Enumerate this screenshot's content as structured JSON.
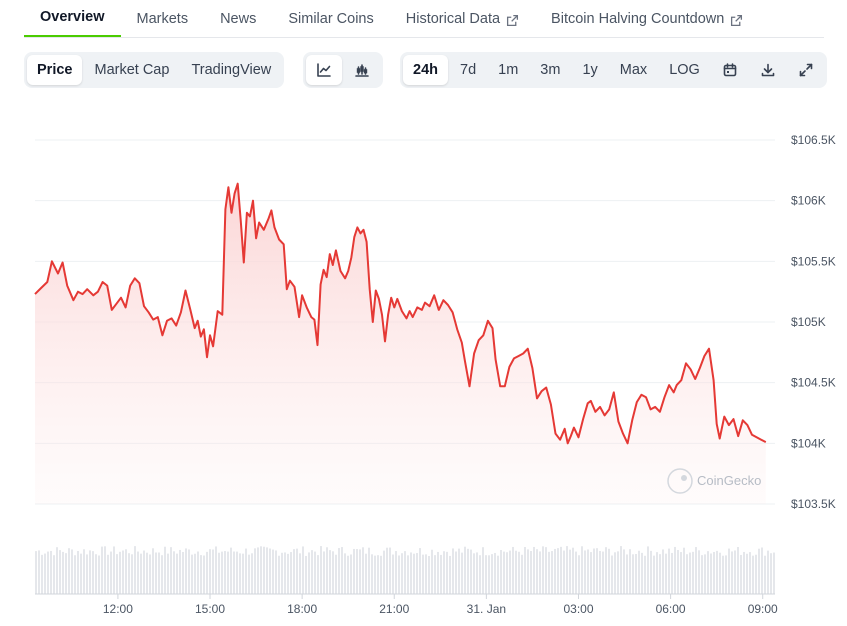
{
  "tabs": [
    {
      "label": "Overview",
      "active": true,
      "external": false
    },
    {
      "label": "Markets",
      "active": false,
      "external": false
    },
    {
      "label": "News",
      "active": false,
      "external": false
    },
    {
      "label": "Similar Coins",
      "active": false,
      "external": false
    },
    {
      "label": "Historical Data",
      "active": false,
      "external": true
    },
    {
      "label": "Bitcoin Halving Countdown",
      "active": false,
      "external": true
    }
  ],
  "toolbar": {
    "view_options": [
      "Price",
      "Market Cap",
      "TradingView"
    ],
    "view_selected": "Price",
    "chart_type_icons": [
      "line-chart-icon",
      "candlestick-chart-icon"
    ],
    "chart_type_selected": "line-chart-icon",
    "ranges": [
      "24h",
      "7d",
      "1m",
      "3m",
      "1y",
      "Max",
      "LOG"
    ],
    "range_selected": "24h",
    "action_icons": [
      "calendar-icon",
      "download-icon",
      "expand-icon"
    ]
  },
  "watermark": "CoinGecko",
  "colors": {
    "line": "#e53935",
    "fill_top": "#fbd4d4",
    "accent": "#4bcc00",
    "volume": "#e5e7eb"
  },
  "chart_data": {
    "type": "area",
    "y_ticks": [
      "$106.5K",
      "$106K",
      "$105.5K",
      "$105K",
      "$104.5K",
      "$104K",
      "$103.5K"
    ],
    "y_tick_values": [
      106500,
      106000,
      105500,
      105000,
      104500,
      104000,
      103500
    ],
    "ylim": [
      103500,
      106500
    ],
    "x_ticks": [
      "12:00",
      "15:00",
      "18:00",
      "21:00",
      "31. Jan",
      "03:00",
      "06:00",
      "09:00"
    ],
    "x_tick_hours": [
      12,
      15,
      18,
      21,
      24,
      27,
      30,
      33
    ],
    "xlim": [
      9.3,
      33.4
    ],
    "grid": true,
    "series": [
      {
        "points": [
          [
            9.3,
            105230
          ],
          [
            9.5,
            105280
          ],
          [
            9.7,
            105330
          ],
          [
            9.85,
            105500
          ],
          [
            10.05,
            105400
          ],
          [
            10.2,
            105490
          ],
          [
            10.35,
            105300
          ],
          [
            10.55,
            105180
          ],
          [
            10.7,
            105250
          ],
          [
            10.85,
            105230
          ],
          [
            11.0,
            105270
          ],
          [
            11.2,
            105220
          ],
          [
            11.35,
            105250
          ],
          [
            11.5,
            105330
          ],
          [
            11.65,
            105300
          ],
          [
            11.8,
            105100
          ],
          [
            11.95,
            105150
          ],
          [
            12.1,
            105200
          ],
          [
            12.25,
            105120
          ],
          [
            12.4,
            105300
          ],
          [
            12.55,
            105360
          ],
          [
            12.7,
            105320
          ],
          [
            12.85,
            105130
          ],
          [
            13.0,
            105080
          ],
          [
            13.15,
            105020
          ],
          [
            13.3,
            105040
          ],
          [
            13.45,
            104890
          ],
          [
            13.6,
            105010
          ],
          [
            13.75,
            105030
          ],
          [
            13.9,
            104970
          ],
          [
            14.05,
            105080
          ],
          [
            14.2,
            105260
          ],
          [
            14.35,
            105110
          ],
          [
            14.5,
            104950
          ],
          [
            14.6,
            105010
          ],
          [
            14.7,
            104880
          ],
          [
            14.8,
            104940
          ],
          [
            14.9,
            104710
          ],
          [
            15.0,
            104890
          ],
          [
            15.1,
            104800
          ],
          [
            15.25,
            105090
          ],
          [
            15.4,
            105060
          ],
          [
            15.5,
            105930
          ],
          [
            15.6,
            106110
          ],
          [
            15.7,
            105900
          ],
          [
            15.8,
            106060
          ],
          [
            15.9,
            106140
          ],
          [
            16.0,
            105840
          ],
          [
            16.1,
            105490
          ],
          [
            16.2,
            105900
          ],
          [
            16.3,
            105870
          ],
          [
            16.4,
            106000
          ],
          [
            16.5,
            105690
          ],
          [
            16.6,
            105820
          ],
          [
            16.75,
            105760
          ],
          [
            16.9,
            105850
          ],
          [
            17.0,
            105920
          ],
          [
            17.1,
            105780
          ],
          [
            17.25,
            105680
          ],
          [
            17.4,
            105640
          ],
          [
            17.5,
            105270
          ],
          [
            17.6,
            105340
          ],
          [
            17.75,
            105290
          ],
          [
            17.9,
            105040
          ],
          [
            18.0,
            105220
          ],
          [
            18.15,
            105120
          ],
          [
            18.3,
            105040
          ],
          [
            18.4,
            105020
          ],
          [
            18.5,
            104810
          ],
          [
            18.6,
            105310
          ],
          [
            18.7,
            105430
          ],
          [
            18.8,
            105370
          ],
          [
            18.9,
            105560
          ],
          [
            19.0,
            105470
          ],
          [
            19.1,
            105590
          ],
          [
            19.25,
            105420
          ],
          [
            19.4,
            105360
          ],
          [
            19.5,
            105420
          ],
          [
            19.6,
            105530
          ],
          [
            19.7,
            105700
          ],
          [
            19.8,
            105780
          ],
          [
            19.9,
            105730
          ],
          [
            20.0,
            105760
          ],
          [
            20.1,
            105660
          ],
          [
            20.2,
            105270
          ],
          [
            20.3,
            105000
          ],
          [
            20.4,
            105260
          ],
          [
            20.5,
            105190
          ],
          [
            20.6,
            105060
          ],
          [
            20.7,
            104840
          ],
          [
            20.8,
            105060
          ],
          [
            20.9,
            105200
          ],
          [
            21.0,
            105120
          ],
          [
            21.1,
            105190
          ],
          [
            21.25,
            105090
          ],
          [
            21.4,
            105030
          ],
          [
            21.5,
            105090
          ],
          [
            21.6,
            105040
          ],
          [
            21.75,
            105120
          ],
          [
            21.9,
            105100
          ],
          [
            22.0,
            105160
          ],
          [
            22.15,
            105130
          ],
          [
            22.3,
            105220
          ],
          [
            22.45,
            105100
          ],
          [
            22.6,
            105180
          ],
          [
            22.75,
            105140
          ],
          [
            22.9,
            105080
          ],
          [
            23.05,
            104940
          ],
          [
            23.2,
            104830
          ],
          [
            23.3,
            104680
          ],
          [
            23.45,
            104470
          ],
          [
            23.6,
            104740
          ],
          [
            23.75,
            104850
          ],
          [
            23.9,
            104890
          ],
          [
            24.05,
            105010
          ],
          [
            24.2,
            104950
          ],
          [
            24.3,
            104690
          ],
          [
            24.45,
            104470
          ],
          [
            24.6,
            104470
          ],
          [
            24.75,
            104630
          ],
          [
            24.9,
            104700
          ],
          [
            25.05,
            104720
          ],
          [
            25.2,
            104740
          ],
          [
            25.35,
            104780
          ],
          [
            25.5,
            104620
          ],
          [
            25.65,
            104370
          ],
          [
            25.8,
            104430
          ],
          [
            25.95,
            104460
          ],
          [
            26.1,
            104320
          ],
          [
            26.25,
            104080
          ],
          [
            26.4,
            104030
          ],
          [
            26.55,
            104120
          ],
          [
            26.65,
            104000
          ],
          [
            26.75,
            104060
          ],
          [
            26.85,
            104130
          ],
          [
            27.0,
            104050
          ],
          [
            27.15,
            104200
          ],
          [
            27.3,
            104330
          ],
          [
            27.4,
            104350
          ],
          [
            27.55,
            104260
          ],
          [
            27.7,
            104300
          ],
          [
            27.85,
            104230
          ],
          [
            28.0,
            104280
          ],
          [
            28.15,
            104420
          ],
          [
            28.3,
            104180
          ],
          [
            28.45,
            104080
          ],
          [
            28.6,
            104000
          ],
          [
            28.75,
            104190
          ],
          [
            28.9,
            104340
          ],
          [
            29.05,
            104400
          ],
          [
            29.2,
            104380
          ],
          [
            29.35,
            104280
          ],
          [
            29.5,
            104300
          ],
          [
            29.65,
            104260
          ],
          [
            29.8,
            104380
          ],
          [
            29.95,
            104480
          ],
          [
            30.1,
            104420
          ],
          [
            30.2,
            104480
          ],
          [
            30.35,
            104520
          ],
          [
            30.5,
            104660
          ],
          [
            30.65,
            104610
          ],
          [
            30.8,
            104530
          ],
          [
            30.95,
            104620
          ],
          [
            31.1,
            104720
          ],
          [
            31.25,
            104780
          ],
          [
            31.4,
            104520
          ],
          [
            31.5,
            104160
          ],
          [
            31.6,
            104040
          ],
          [
            31.75,
            104220
          ],
          [
            31.9,
            104150
          ],
          [
            32.05,
            104200
          ],
          [
            32.2,
            104060
          ],
          [
            32.35,
            104190
          ],
          [
            32.5,
            104150
          ],
          [
            32.65,
            104070
          ],
          [
            32.8,
            104050
          ],
          [
            32.95,
            104030
          ],
          [
            33.1,
            104010
          ]
        ]
      }
    ]
  }
}
